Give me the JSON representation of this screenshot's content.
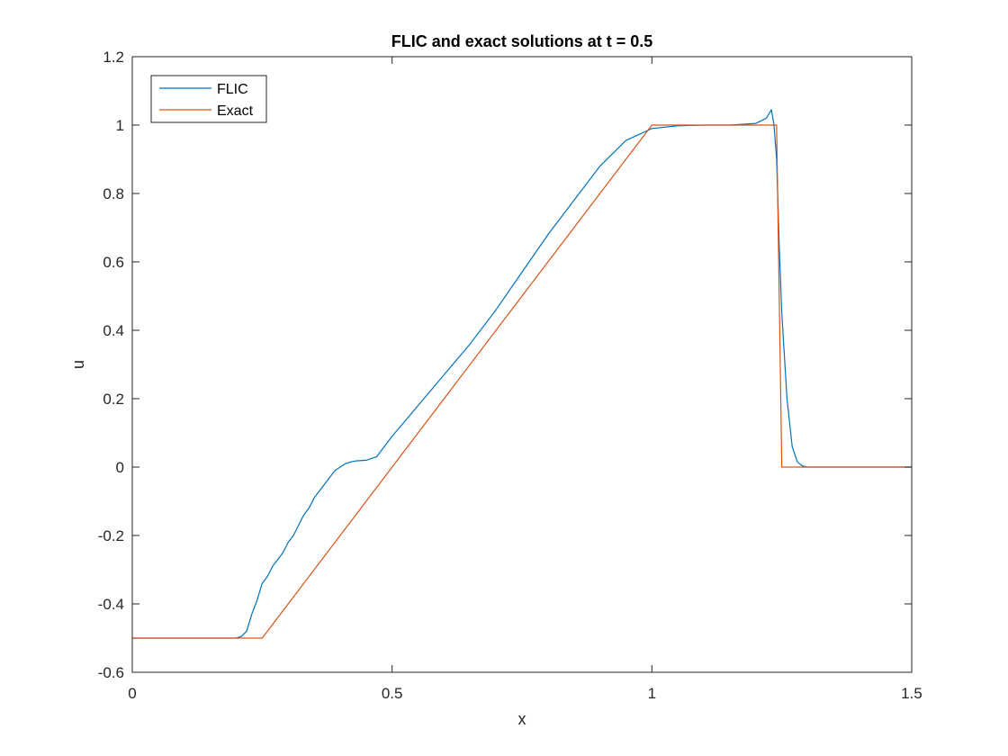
{
  "chart_data": {
    "type": "line",
    "title": "FLIC and exact solutions at t = 0.5",
    "xlabel": "x",
    "ylabel": "u",
    "xlim": [
      0,
      1.5
    ],
    "ylim": [
      -0.6,
      1.2
    ],
    "xticks": [
      0,
      0.5,
      1,
      1.5
    ],
    "yticks": [
      -0.6,
      -0.4,
      -0.2,
      0,
      0.2,
      0.4,
      0.6,
      0.8,
      1,
      1.2
    ],
    "xtick_labels": [
      "0",
      "0.5",
      "1",
      "1.5"
    ],
    "ytick_labels": [
      "-0.6",
      "-0.4",
      "-0.2",
      "0",
      "0.2",
      "0.4",
      "0.6",
      "0.8",
      "1",
      "1.2"
    ],
    "grid": false,
    "legend_position": "top-left",
    "series": [
      {
        "name": "FLIC",
        "color": "#0072BD",
        "x": [
          0,
          0.15,
          0.2,
          0.21,
          0.22,
          0.23,
          0.24,
          0.25,
          0.26,
          0.27,
          0.28,
          0.29,
          0.3,
          0.31,
          0.32,
          0.33,
          0.34,
          0.35,
          0.36,
          0.37,
          0.38,
          0.39,
          0.4,
          0.41,
          0.42,
          0.43,
          0.45,
          0.47,
          0.48,
          0.5,
          0.55,
          0.6,
          0.65,
          0.7,
          0.75,
          0.8,
          0.85,
          0.9,
          0.95,
          1.0,
          1.05,
          1.1,
          1.15,
          1.2,
          1.22,
          1.23,
          1.235,
          1.24,
          1.245,
          1.25,
          1.26,
          1.27,
          1.28,
          1.29,
          1.3,
          1.35,
          1.4,
          1.5
        ],
        "y": [
          -0.5,
          -0.5,
          -0.5,
          -0.495,
          -0.48,
          -0.43,
          -0.39,
          -0.34,
          -0.32,
          -0.29,
          -0.27,
          -0.25,
          -0.22,
          -0.2,
          -0.17,
          -0.14,
          -0.12,
          -0.09,
          -0.07,
          -0.05,
          -0.03,
          -0.01,
          0.0,
          0.01,
          0.015,
          0.018,
          0.02,
          0.03,
          0.05,
          0.09,
          0.18,
          0.27,
          0.36,
          0.46,
          0.57,
          0.68,
          0.78,
          0.88,
          0.955,
          0.99,
          0.998,
          1.0,
          1.0,
          1.005,
          1.02,
          1.045,
          1.0,
          0.9,
          0.65,
          0.45,
          0.2,
          0.06,
          0.015,
          0.003,
          0.0,
          0.0,
          0.0,
          0.0
        ]
      },
      {
        "name": "Exact",
        "color": "#D95319",
        "x": [
          0,
          0.25,
          1.0,
          1.24,
          1.25,
          1.5
        ],
        "y": [
          -0.5,
          -0.5,
          1.0,
          1.0,
          0.0,
          0.0
        ]
      }
    ]
  }
}
